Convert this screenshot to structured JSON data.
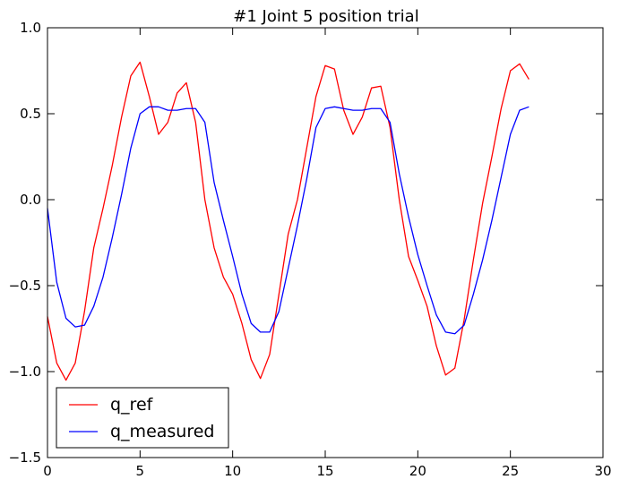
{
  "chart_data": {
    "type": "line",
    "title": "#1 Joint 5 position trial",
    "xlabel": "",
    "ylabel": "",
    "xlim": [
      0,
      30
    ],
    "ylim": [
      -1.5,
      1.0
    ],
    "xticks": [
      "0",
      "5",
      "10",
      "15",
      "20",
      "25",
      "30"
    ],
    "xtick_values": [
      0,
      5,
      10,
      15,
      20,
      25,
      30
    ],
    "yticks": [
      "1.0",
      "0.5",
      "0.0",
      "−0.5",
      "−1.0",
      "−1.5"
    ],
    "ytick_values": [
      1.0,
      0.5,
      0.0,
      -0.5,
      -1.0,
      -1.5
    ],
    "grid": false,
    "legend_position": "lower-left",
    "series": [
      {
        "name": "q_ref",
        "color": "#ff0000",
        "x": [
          0,
          0.5,
          1.0,
          1.5,
          2.0,
          2.5,
          3.0,
          3.5,
          4.0,
          4.5,
          5.0,
          5.5,
          6.0,
          6.5,
          7.0,
          7.5,
          8.0,
          8.5,
          9.0,
          9.5,
          10.0,
          10.5,
          11.0,
          11.5,
          12.0,
          12.5,
          13.0,
          13.5,
          14.0,
          14.5,
          15.0,
          15.5,
          16.0,
          16.5,
          17.0,
          17.5,
          18.0,
          18.5,
          19.0,
          19.5,
          20.0,
          20.5,
          21.0,
          21.5,
          22.0,
          22.5,
          23.0,
          23.5,
          24.0,
          24.5,
          25.0,
          25.5,
          26.0
        ],
        "y": [
          -0.68,
          -0.95,
          -1.05,
          -0.95,
          -0.65,
          -0.28,
          -0.05,
          0.2,
          0.48,
          0.72,
          0.8,
          0.6,
          0.38,
          0.45,
          0.62,
          0.68,
          0.45,
          0.0,
          -0.28,
          -0.45,
          -0.55,
          -0.72,
          -0.93,
          -1.04,
          -0.9,
          -0.55,
          -0.2,
          0.0,
          0.3,
          0.6,
          0.78,
          0.76,
          0.52,
          0.38,
          0.48,
          0.65,
          0.66,
          0.42,
          0.0,
          -0.33,
          -0.47,
          -0.62,
          -0.85,
          -1.02,
          -0.98,
          -0.7,
          -0.35,
          -0.02,
          0.25,
          0.53,
          0.75,
          0.79,
          0.7
        ]
      },
      {
        "name": "q_measured",
        "color": "#0000ff",
        "x": [
          0,
          0.5,
          1.0,
          1.5,
          2.0,
          2.5,
          3.0,
          3.5,
          4.0,
          4.5,
          5.0,
          5.5,
          6.0,
          6.5,
          7.0,
          7.5,
          8.0,
          8.5,
          9.0,
          9.5,
          10.0,
          10.5,
          11.0,
          11.5,
          12.0,
          12.5,
          13.0,
          13.5,
          14.0,
          14.5,
          15.0,
          15.5,
          16.0,
          16.5,
          17.0,
          17.5,
          18.0,
          18.5,
          19.0,
          19.5,
          20.0,
          20.5,
          21.0,
          21.5,
          22.0,
          22.5,
          23.0,
          23.5,
          24.0,
          24.5,
          25.0,
          25.5,
          26.0
        ],
        "y": [
          -0.05,
          -0.48,
          -0.69,
          -0.74,
          -0.73,
          -0.62,
          -0.45,
          -0.22,
          0.03,
          0.3,
          0.5,
          0.54,
          0.54,
          0.52,
          0.52,
          0.53,
          0.53,
          0.45,
          0.1,
          -0.12,
          -0.33,
          -0.55,
          -0.72,
          -0.77,
          -0.77,
          -0.65,
          -0.4,
          -0.15,
          0.12,
          0.42,
          0.53,
          0.54,
          0.53,
          0.52,
          0.52,
          0.53,
          0.53,
          0.45,
          0.15,
          -0.1,
          -0.32,
          -0.5,
          -0.67,
          -0.77,
          -0.78,
          -0.73,
          -0.55,
          -0.35,
          -0.12,
          0.13,
          0.38,
          0.52,
          0.54
        ]
      }
    ]
  }
}
